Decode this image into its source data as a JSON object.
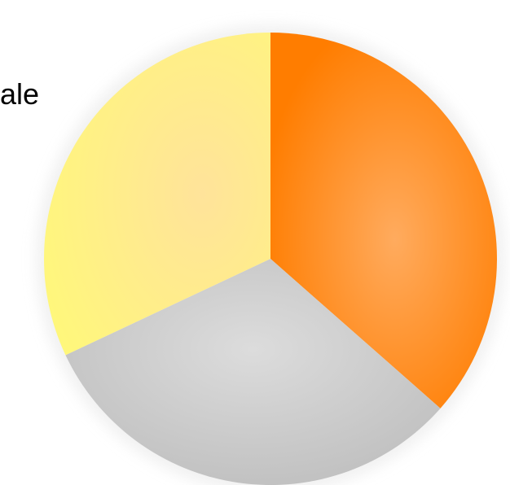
{
  "chart_data": {
    "type": "pie",
    "title": "",
    "label_fragment": "ale",
    "slices": [
      {
        "value": 36.5,
        "color": "#ff7f0e"
      },
      {
        "value": 31.5,
        "color": "#cccccc"
      },
      {
        "value": 32.0,
        "color": "#fff176"
      }
    ],
    "start_angle_deg": 0,
    "direction": "clockwise"
  }
}
